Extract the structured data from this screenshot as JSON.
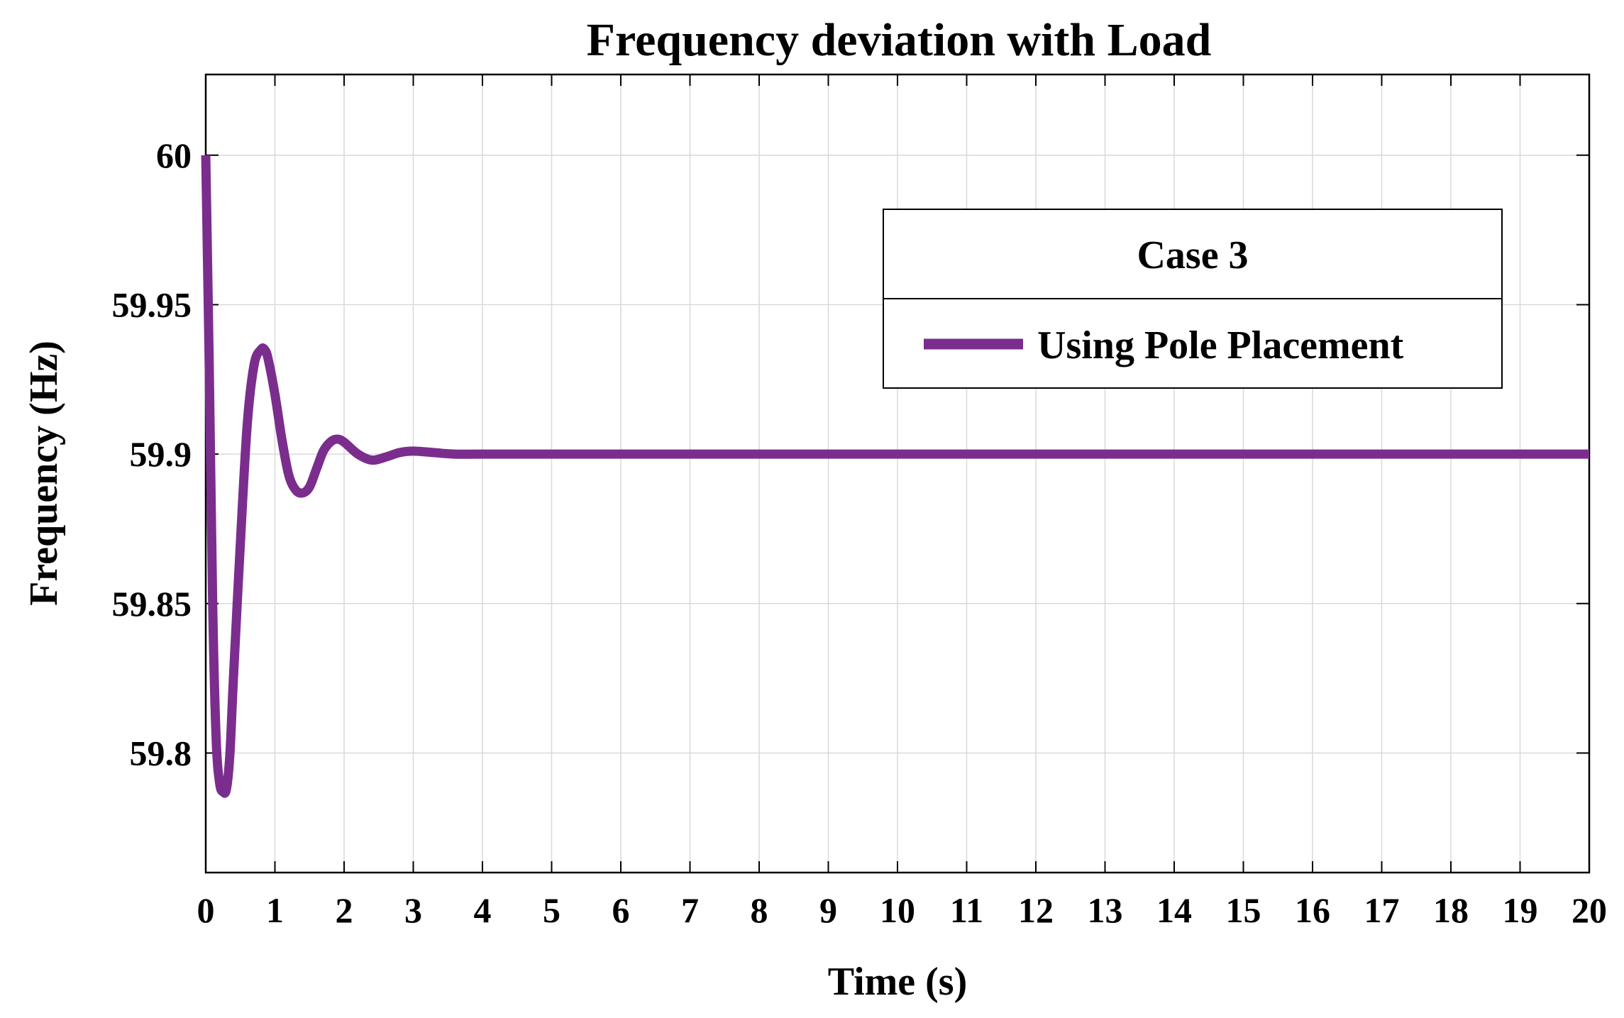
{
  "chart_data": {
    "type": "line",
    "title": "Frequency deviation with Load",
    "xlabel": "Time (s)",
    "ylabel": "Frequency (Hz)",
    "xlim": [
      0,
      20
    ],
    "ylim": [
      59.76,
      60.027
    ],
    "xticks": [
      0,
      1,
      2,
      3,
      4,
      5,
      6,
      7,
      8,
      9,
      10,
      11,
      12,
      13,
      14,
      15,
      16,
      17,
      18,
      19,
      20
    ],
    "xtick_labels": [
      "0",
      "1",
      "2",
      "3",
      "4",
      "5",
      "6",
      "7",
      "8",
      "9",
      "10",
      "11",
      "12",
      "13",
      "14",
      "15",
      "16",
      "17",
      "18",
      "19",
      "20"
    ],
    "yticks": [
      59.8,
      59.85,
      59.9,
      59.95,
      60
    ],
    "ytick_labels": [
      "59.8",
      "59.85",
      "59.9",
      "59.95",
      "60"
    ],
    "grid": true,
    "legend_title": "Case 3",
    "legend_position": "top-right",
    "series": [
      {
        "name": "Using Pole Placement",
        "color": "#7B2D8E",
        "x": [
          0,
          0.05,
          0.1,
          0.15,
          0.2,
          0.25,
          0.3,
          0.35,
          0.4,
          0.5,
          0.6,
          0.7,
          0.8,
          0.85,
          0.9,
          1.0,
          1.1,
          1.2,
          1.3,
          1.4,
          1.5,
          1.6,
          1.7,
          1.8,
          1.9,
          2.0,
          2.2,
          2.4,
          2.6,
          2.8,
          3.0,
          3.3,
          3.6,
          4.0,
          5.0,
          6.0,
          8.0,
          10.0,
          12.0,
          14.0,
          16.0,
          18.0,
          20.0
        ],
        "y": [
          60.0,
          59.93,
          59.85,
          59.805,
          59.79,
          59.787,
          59.788,
          59.8,
          59.825,
          59.87,
          59.91,
          59.93,
          59.935,
          59.935,
          59.932,
          59.92,
          59.905,
          59.893,
          59.888,
          59.887,
          59.889,
          59.895,
          59.901,
          59.904,
          59.905,
          59.904,
          59.9,
          59.898,
          59.899,
          59.9005,
          59.901,
          59.9005,
          59.9,
          59.9,
          59.9,
          59.9,
          59.9,
          59.9,
          59.9,
          59.9,
          59.9,
          59.9,
          59.9
        ]
      }
    ]
  }
}
